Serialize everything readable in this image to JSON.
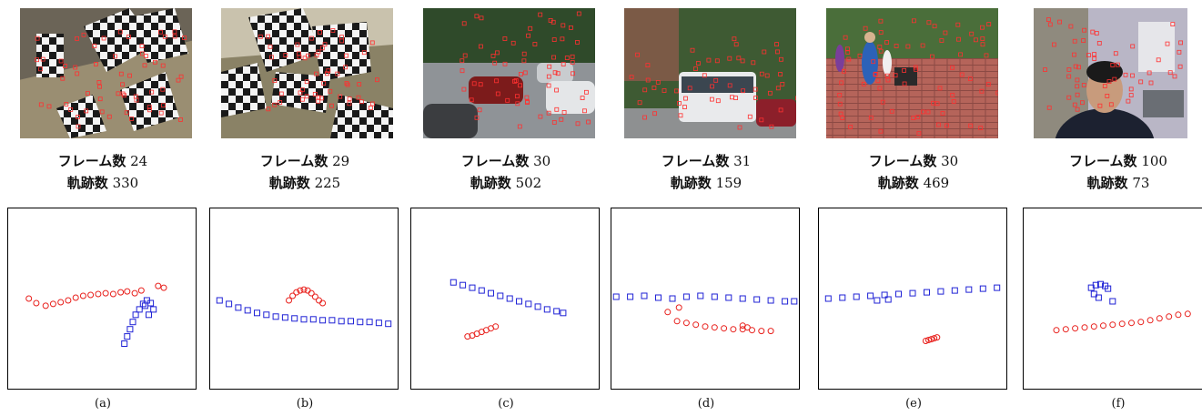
{
  "panels": [
    {
      "label": "(a)",
      "frames_label": "フレーム数",
      "frames": "24",
      "tracks_label": "軌跡数",
      "tracks": "330",
      "scene": "checkerboard-cylinder"
    },
    {
      "label": "(b)",
      "frames_label": "フレーム数",
      "frames": "29",
      "tracks_label": "軌跡数",
      "tracks": "225",
      "scene": "checkerboard-boxes"
    },
    {
      "label": "(c)",
      "frames_label": "フレーム数",
      "frames": "30",
      "tracks_label": "軌跡数",
      "tracks": "502",
      "scene": "street-cars"
    },
    {
      "label": "(d)",
      "frames_label": "フレーム数",
      "frames": "31",
      "tracks_label": "軌跡数",
      "tracks": "159",
      "scene": "street-bus"
    },
    {
      "label": "(e)",
      "frames_label": "フレーム数",
      "frames": "30",
      "tracks_label": "軌跡数",
      "tracks": "469",
      "scene": "plaza-pedestrians"
    },
    {
      "label": "(f)",
      "frames_label": "フレーム数",
      "frames": "100",
      "tracks_label": "軌跡数",
      "tracks": "73",
      "scene": "office-person"
    }
  ],
  "colors": {
    "series1": "#e8201c",
    "series2": "#1f22d6"
  },
  "chart_data": [
    {
      "type": "scatter",
      "series": [
        {
          "marker": "circle",
          "color": "#e8201c",
          "x": [
            -0.78,
            -0.7,
            -0.6,
            -0.52,
            -0.44,
            -0.36,
            -0.28,
            -0.2,
            -0.12,
            -0.04,
            0.04,
            0.12,
            0.2,
            0.27,
            0.35,
            0.42,
            0.6,
            0.66
          ],
          "y": [
            0.0,
            -0.05,
            -0.08,
            -0.06,
            -0.04,
            -0.02,
            0.01,
            0.03,
            0.04,
            0.05,
            0.06,
            0.05,
            0.07,
            0.08,
            0.06,
            0.09,
            0.14,
            0.12
          ]
        },
        {
          "marker": "square",
          "color": "#1f22d6",
          "x": [
            0.24,
            0.27,
            0.3,
            0.33,
            0.36,
            0.4,
            0.44,
            0.48,
            0.52,
            0.55,
            0.5,
            0.46
          ],
          "y": [
            -0.5,
            -0.42,
            -0.34,
            -0.26,
            -0.18,
            -0.12,
            -0.06,
            -0.02,
            -0.05,
            -0.12,
            -0.18,
            -0.08
          ]
        }
      ]
    },
    {
      "type": "scatter",
      "series": [
        {
          "marker": "circle",
          "color": "#e8201c",
          "x": [
            -0.16,
            -0.12,
            -0.08,
            -0.04,
            0.0,
            0.04,
            0.08,
            0.12,
            0.16,
            0.2
          ],
          "y": [
            -0.02,
            0.03,
            0.07,
            0.09,
            0.1,
            0.09,
            0.06,
            0.02,
            -0.02,
            -0.05
          ]
        },
        {
          "marker": "square",
          "color": "#1f22d6",
          "x": [
            -0.9,
            -0.8,
            -0.7,
            -0.6,
            -0.5,
            -0.4,
            -0.3,
            -0.2,
            -0.1,
            0.0,
            0.1,
            0.2,
            0.3,
            0.4,
            0.5,
            0.6,
            0.7,
            0.8,
            0.9
          ],
          "y": [
            -0.02,
            -0.06,
            -0.1,
            -0.13,
            -0.16,
            -0.18,
            -0.2,
            -0.21,
            -0.22,
            -0.23,
            -0.23,
            -0.24,
            -0.24,
            -0.25,
            -0.25,
            -0.26,
            -0.26,
            -0.27,
            -0.28
          ]
        }
      ]
    },
    {
      "type": "scatter",
      "series": [
        {
          "marker": "square",
          "color": "#1f22d6",
          "x": [
            -0.55,
            -0.45,
            -0.35,
            -0.25,
            -0.15,
            -0.05,
            0.05,
            0.15,
            0.25,
            0.35,
            0.45,
            0.55,
            0.62
          ],
          "y": [
            0.18,
            0.15,
            0.12,
            0.09,
            0.06,
            0.03,
            0.0,
            -0.03,
            -0.06,
            -0.09,
            -0.12,
            -0.14,
            -0.16
          ]
        },
        {
          "marker": "circle",
          "color": "#e8201c",
          "x": [
            -0.4,
            -0.35,
            -0.3,
            -0.25,
            -0.2,
            -0.15,
            -0.1
          ],
          "y": [
            -0.42,
            -0.41,
            -0.39,
            -0.37,
            -0.35,
            -0.33,
            -0.31
          ]
        }
      ]
    },
    {
      "type": "scatter",
      "series": [
        {
          "marker": "square",
          "color": "#1f22d6",
          "x": [
            -0.95,
            -0.8,
            -0.65,
            -0.5,
            -0.35,
            -0.2,
            -0.05,
            0.1,
            0.25,
            0.4,
            0.55,
            0.7,
            0.85,
            0.95
          ],
          "y": [
            0.02,
            0.02,
            0.03,
            0.01,
            0.0,
            0.02,
            0.03,
            0.02,
            0.01,
            0.0,
            -0.01,
            -0.02,
            -0.03,
            -0.03
          ]
        },
        {
          "marker": "circle",
          "color": "#e8201c",
          "x": [
            -0.4,
            -0.3,
            -0.2,
            -0.1,
            0.0,
            0.1,
            0.2,
            0.3,
            0.4,
            0.5,
            0.6,
            0.7,
            0.4,
            0.45,
            -0.28
          ],
          "y": [
            -0.15,
            -0.25,
            -0.27,
            -0.29,
            -0.31,
            -0.32,
            -0.33,
            -0.34,
            -0.34,
            -0.35,
            -0.36,
            -0.36,
            -0.3,
            -0.32,
            -0.1
          ]
        }
      ]
    },
    {
      "type": "scatter",
      "series": [
        {
          "marker": "square",
          "color": "#1f22d6",
          "x": [
            -0.9,
            -0.75,
            -0.6,
            -0.45,
            -0.3,
            -0.15,
            0.0,
            0.15,
            0.3,
            0.45,
            0.6,
            0.75,
            0.9,
            -0.38,
            -0.26
          ],
          "y": [
            0.0,
            0.01,
            0.02,
            0.03,
            0.04,
            0.05,
            0.06,
            0.07,
            0.08,
            0.09,
            0.1,
            0.11,
            0.12,
            -0.02,
            -0.01
          ]
        },
        {
          "marker": "circle",
          "color": "#e8201c",
          "x": [
            0.14,
            0.17,
            0.2,
            0.23,
            0.26
          ],
          "y": [
            -0.47,
            -0.46,
            -0.45,
            -0.44,
            -0.43
          ]
        }
      ]
    },
    {
      "type": "scatter",
      "series": [
        {
          "marker": "square",
          "color": "#1f22d6",
          "x": [
            -0.28,
            -0.23,
            -0.18,
            -0.13,
            -0.1,
            -0.25,
            -0.05,
            -0.2
          ],
          "y": [
            0.12,
            0.15,
            0.16,
            0.14,
            0.11,
            0.05,
            -0.03,
            0.01
          ]
        },
        {
          "marker": "circle",
          "color": "#e8201c",
          "x": [
            -0.65,
            -0.55,
            -0.45,
            -0.35,
            -0.25,
            -0.15,
            -0.05,
            0.05,
            0.15,
            0.25,
            0.35,
            0.45,
            0.55,
            0.65,
            0.75
          ],
          "y": [
            -0.35,
            -0.34,
            -0.33,
            -0.32,
            -0.31,
            -0.3,
            -0.29,
            -0.28,
            -0.27,
            -0.26,
            -0.24,
            -0.22,
            -0.2,
            -0.18,
            -0.17
          ]
        }
      ]
    }
  ]
}
